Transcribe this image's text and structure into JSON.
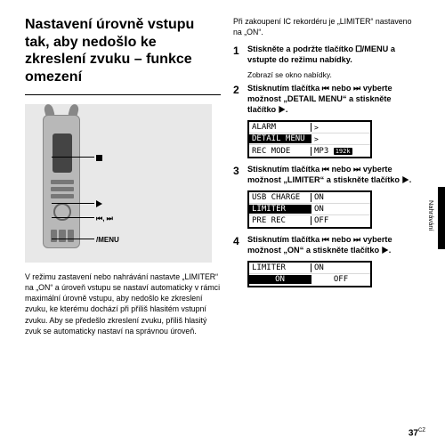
{
  "title": "Nastavení úrovně vstupu tak, aby nedošlo ke zkreslení zvuku – funkce omezení",
  "callouts": {
    "stop": "",
    "play": "",
    "skip": "⏮, ⏭",
    "menu": "/MENU"
  },
  "left_body": "V režimu zastavení nebo nahrávání nastavte „LIMITER“ na „ON“ a úroveň vstupu se nastaví automaticky v rámci maximální úrovně vstupu, aby nedošlo ke zkreslení zvuku, ke kterému dochází při příliš hlasitém vstupní zvuku. Aby se předešlo zkreslení zvuku, příliš hlasitý zvuk se automaticky nastaví na správnou úroveň.",
  "intro": "Při zakoupení IC rekordéru je „LIMITER“ nastaveno na „ON“.",
  "steps": [
    {
      "num": "1",
      "bold": "Stiskněte a podržte tlačítko 🞐/MENU a vstupte do režimu nabídky.",
      "sub": "Zobrazí se okno nabídky."
    },
    {
      "num": "2",
      "bold": "Stisknutím tlačítka ⏮ nebo ⏭ vyberte možnost „DETAIL MENU“ a stiskněte tlačítko ▶.",
      "lcd": {
        "rows": [
          {
            "l": "ALARM",
            "r": ">",
            "inv": false
          },
          {
            "l": "DETAIL MENU",
            "r": ">",
            "inv": true
          },
          {
            "l": "REC MODE",
            "r": "MP3 192k",
            "inv": false,
            "badge": true
          }
        ]
      }
    },
    {
      "num": "3",
      "bold": "Stisknutím tlačítka ⏮ nebo ⏭ vyberte možnost „LIMITER“ a stiskněte tlačítko ▶.",
      "lcd": {
        "rows": [
          {
            "l": "USB CHARGE",
            "r": "ON",
            "inv": false
          },
          {
            "l": "LIMITER",
            "r": "ON",
            "inv": true
          },
          {
            "l": "PRE REC",
            "r": "OFF",
            "inv": false
          }
        ]
      }
    },
    {
      "num": "4",
      "bold": "Stisknutím tlačítka ⏮ nebo ⏭ vyberte možnost „ON“ a stiskněte tlačítko ▶.",
      "lcd": {
        "rows": [
          {
            "l": "LIMITER",
            "r": "ON",
            "inv": false
          },
          {
            "l": "ON",
            "r": "OFF",
            "inv": true,
            "onoff": true
          }
        ]
      }
    }
  ],
  "side_label": "Nahrávání",
  "page_number": "37",
  "page_suffix": "CZ"
}
